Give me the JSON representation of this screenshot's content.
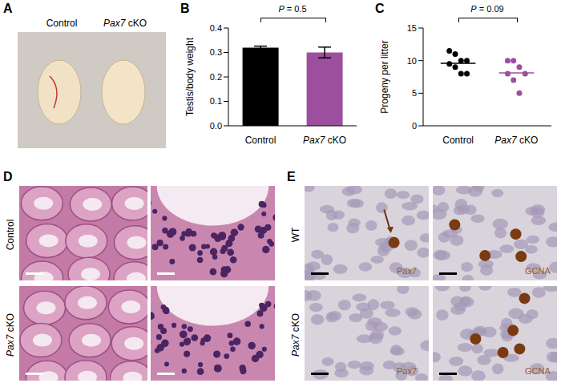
{
  "panels": {
    "A": {
      "label": "A",
      "groups": [
        "Control",
        "Pax7 cKO"
      ]
    },
    "D": {
      "label": "D",
      "rows": [
        "Control",
        "Pax7 cKO"
      ]
    },
    "E": {
      "label": "E",
      "rows": [
        "WT",
        "Pax7 cKO"
      ],
      "stains": [
        "Pax7",
        "GCNA"
      ]
    }
  },
  "chart_data": [
    {
      "panel": "B",
      "type": "bar",
      "categories": [
        "Control",
        "Pax7 cKO"
      ],
      "values": [
        0.32,
        0.3
      ],
      "errors": [
        0.006,
        0.022
      ],
      "colors": [
        "#000000",
        "#9b4f9e"
      ],
      "ylabel": "Testis/body weight",
      "ylim": [
        0,
        0.4
      ],
      "yticks": [
        {
          "value": 0,
          "label": "0.0"
        },
        0.1,
        0.2,
        0.3,
        0.4
      ],
      "annotations": [
        "P = 0.5"
      ]
    },
    {
      "panel": "C",
      "type": "scatter",
      "categories": [
        "Control",
        "Pax7 cKO"
      ],
      "values": [
        [
          11.5,
          11,
          10,
          10,
          9.5,
          9,
          8,
          8
        ],
        [
          10,
          10,
          9,
          8,
          8,
          7,
          5
        ]
      ],
      "means": [
        9.6,
        8.1
      ],
      "colors": [
        "#000000",
        "#9b4f9e"
      ],
      "ylabel": "Progeny per litter",
      "ylim": [
        0,
        15
      ],
      "yticks": [
        0,
        5,
        10,
        15
      ],
      "annotations": [
        "P = 0.09"
      ]
    }
  ]
}
